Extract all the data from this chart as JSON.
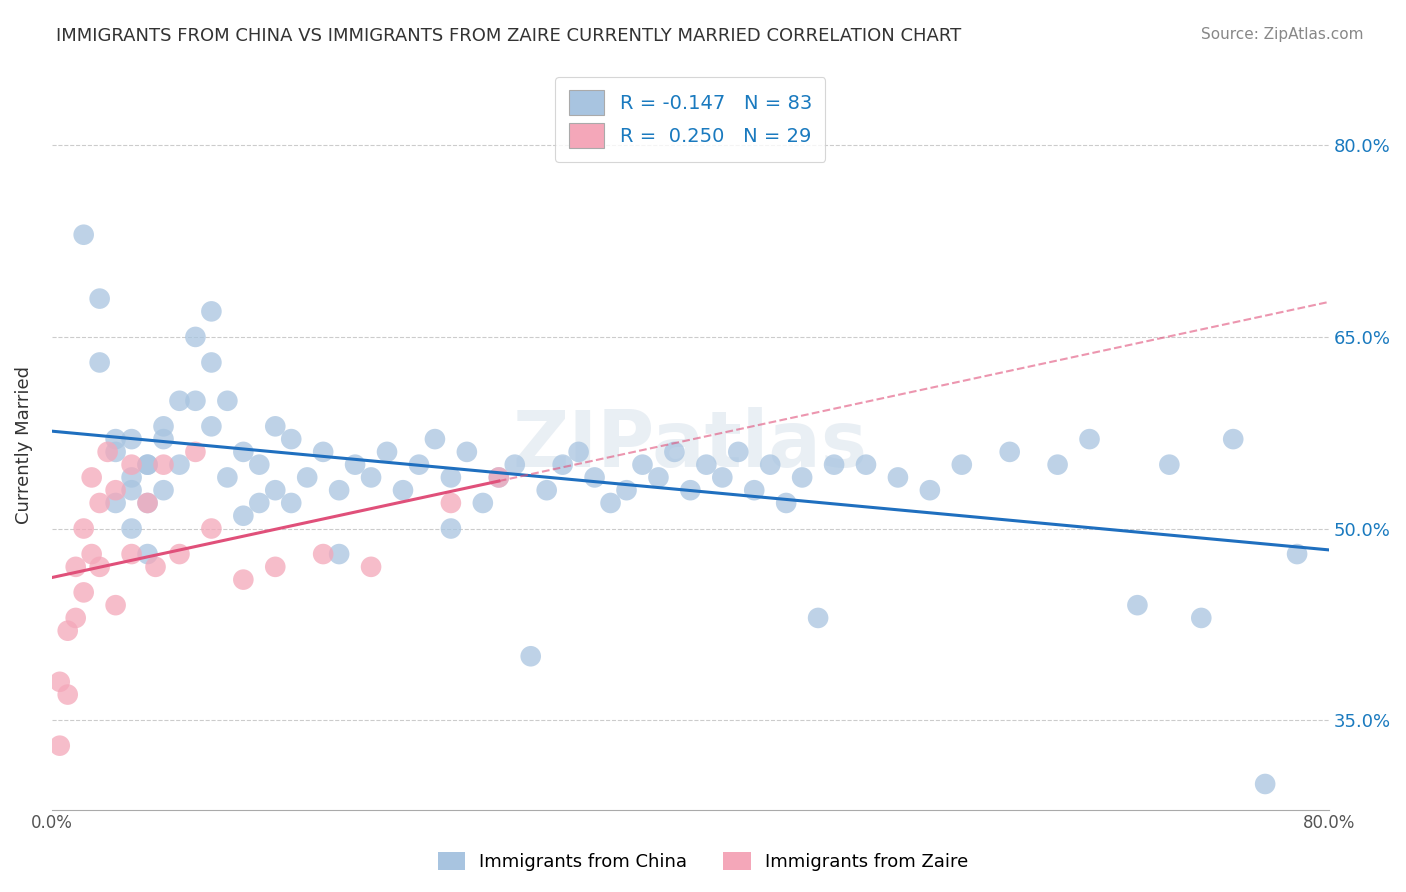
{
  "title": "IMMIGRANTS FROM CHINA VS IMMIGRANTS FROM ZAIRE CURRENTLY MARRIED CORRELATION CHART",
  "source": "Source: ZipAtlas.com",
  "ylabel": "Currently Married",
  "x_min": 0.0,
  "x_max": 0.8,
  "y_min": 0.28,
  "y_max": 0.85,
  "x_ticks": [
    0.0,
    0.1,
    0.2,
    0.3,
    0.4,
    0.5,
    0.6,
    0.7,
    0.8
  ],
  "x_tick_labels": [
    "0.0%",
    "",
    "",
    "",
    "",
    "",
    "",
    "",
    "80.0%"
  ],
  "y_ticks": [
    0.35,
    0.5,
    0.65,
    0.8
  ],
  "y_tick_labels": [
    "35.0%",
    "50.0%",
    "65.0%",
    "80.0%"
  ],
  "china_color": "#a8c4e0",
  "zaire_color": "#f4a7b9",
  "china_line_color": "#1f6fbf",
  "zaire_line_color": "#e0507a",
  "china_R": -0.147,
  "china_N": 83,
  "zaire_R": 0.25,
  "zaire_N": 29,
  "legend_label_china": "Immigrants from China",
  "legend_label_zaire": "Immigrants from Zaire",
  "china_scatter_x": [
    0.02,
    0.03,
    0.03,
    0.04,
    0.04,
    0.04,
    0.05,
    0.05,
    0.05,
    0.05,
    0.06,
    0.06,
    0.06,
    0.06,
    0.07,
    0.07,
    0.07,
    0.08,
    0.08,
    0.09,
    0.09,
    0.1,
    0.1,
    0.1,
    0.11,
    0.11,
    0.12,
    0.12,
    0.13,
    0.13,
    0.14,
    0.14,
    0.15,
    0.15,
    0.16,
    0.17,
    0.18,
    0.18,
    0.19,
    0.2,
    0.21,
    0.22,
    0.23,
    0.24,
    0.25,
    0.25,
    0.26,
    0.27,
    0.28,
    0.29,
    0.3,
    0.31,
    0.32,
    0.33,
    0.34,
    0.35,
    0.36,
    0.37,
    0.38,
    0.39,
    0.4,
    0.41,
    0.42,
    0.43,
    0.44,
    0.45,
    0.46,
    0.47,
    0.48,
    0.49,
    0.51,
    0.53,
    0.55,
    0.57,
    0.6,
    0.63,
    0.65,
    0.68,
    0.7,
    0.72,
    0.74,
    0.76,
    0.78
  ],
  "china_scatter_y": [
    0.73,
    0.68,
    0.63,
    0.56,
    0.52,
    0.57,
    0.54,
    0.57,
    0.5,
    0.53,
    0.55,
    0.52,
    0.55,
    0.48,
    0.57,
    0.53,
    0.58,
    0.6,
    0.55,
    0.65,
    0.6,
    0.67,
    0.63,
    0.58,
    0.54,
    0.6,
    0.56,
    0.51,
    0.55,
    0.52,
    0.58,
    0.53,
    0.57,
    0.52,
    0.54,
    0.56,
    0.53,
    0.48,
    0.55,
    0.54,
    0.56,
    0.53,
    0.55,
    0.57,
    0.54,
    0.5,
    0.56,
    0.52,
    0.54,
    0.55,
    0.4,
    0.53,
    0.55,
    0.56,
    0.54,
    0.52,
    0.53,
    0.55,
    0.54,
    0.56,
    0.53,
    0.55,
    0.54,
    0.56,
    0.53,
    0.55,
    0.52,
    0.54,
    0.43,
    0.55,
    0.55,
    0.54,
    0.53,
    0.55,
    0.56,
    0.55,
    0.57,
    0.44,
    0.55,
    0.43,
    0.57,
    0.3,
    0.48
  ],
  "zaire_scatter_x": [
    0.005,
    0.005,
    0.01,
    0.01,
    0.015,
    0.015,
    0.02,
    0.02,
    0.025,
    0.025,
    0.03,
    0.03,
    0.035,
    0.04,
    0.04,
    0.05,
    0.05,
    0.06,
    0.065,
    0.07,
    0.08,
    0.09,
    0.1,
    0.12,
    0.14,
    0.17,
    0.2,
    0.25,
    0.28
  ],
  "zaire_scatter_y": [
    0.38,
    0.33,
    0.42,
    0.37,
    0.47,
    0.43,
    0.5,
    0.45,
    0.54,
    0.48,
    0.52,
    0.47,
    0.56,
    0.53,
    0.44,
    0.55,
    0.48,
    0.52,
    0.47,
    0.55,
    0.48,
    0.56,
    0.5,
    0.46,
    0.47,
    0.48,
    0.47,
    0.52,
    0.54
  ]
}
